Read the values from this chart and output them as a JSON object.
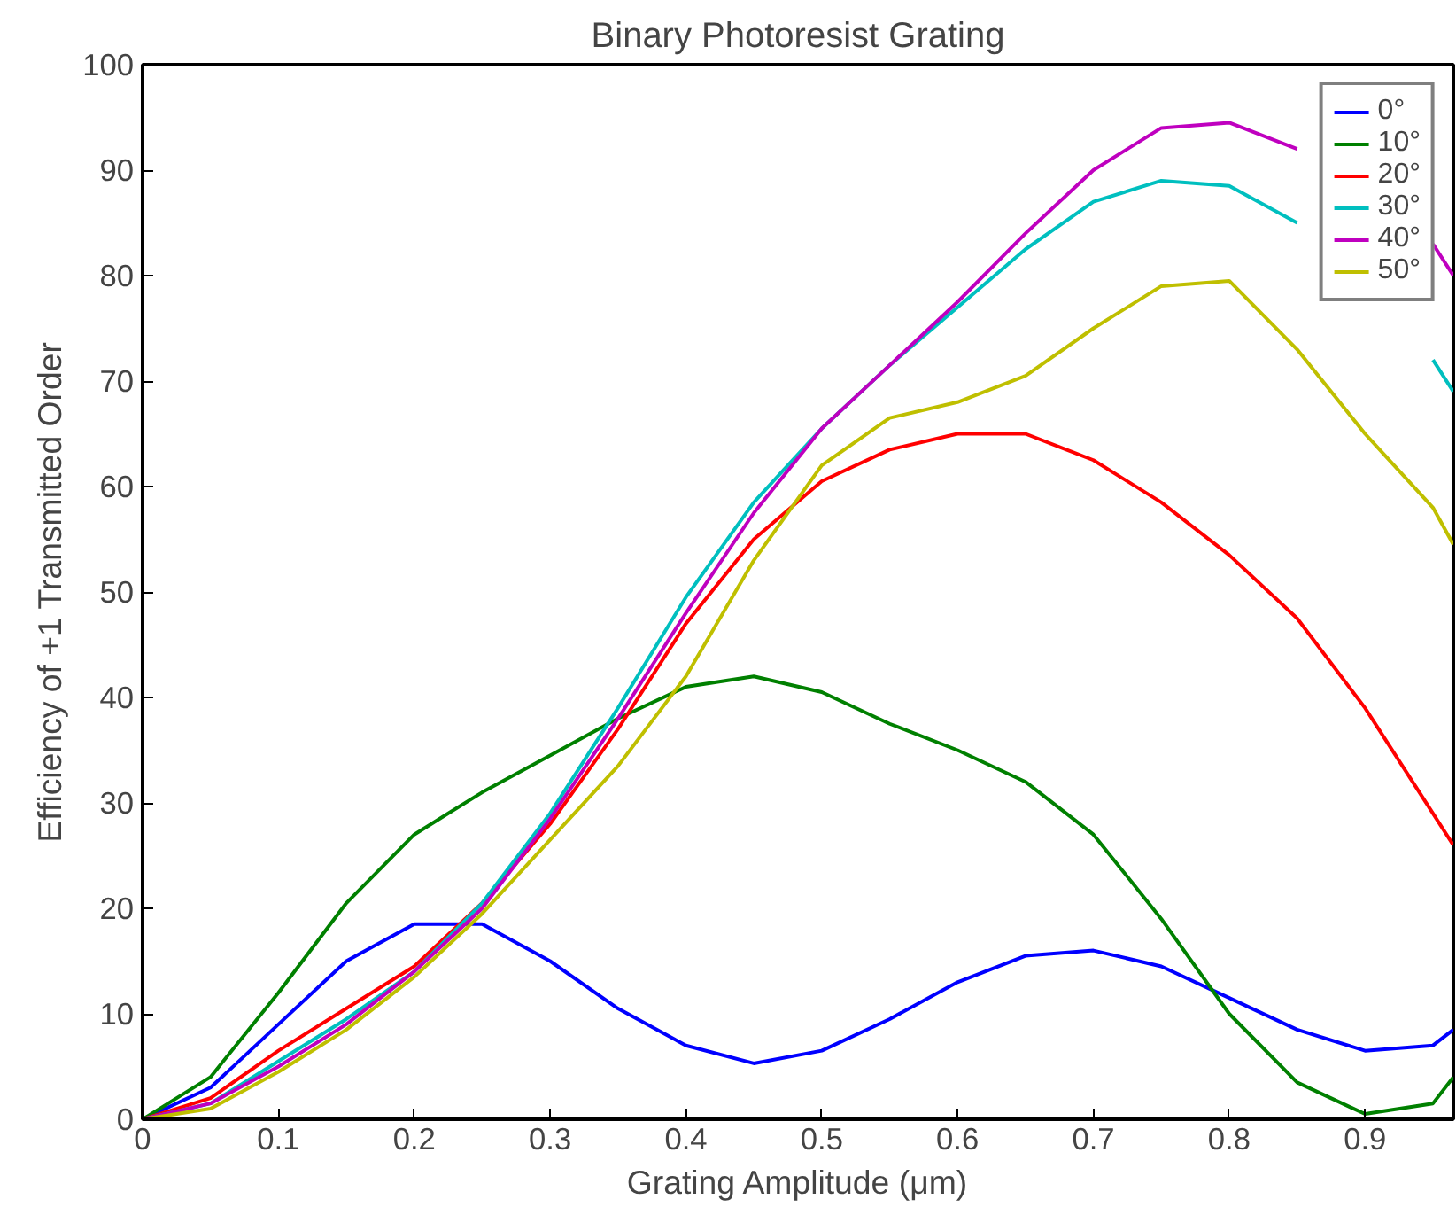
{
  "chart_data": {
    "type": "line",
    "title": "Binary Photoresist Grating",
    "xlabel": "Grating Amplitude (μm)",
    "ylabel": "Efficiency of +1 Transmitted Order",
    "x": [
      0,
      0.05,
      0.1,
      0.15,
      0.2,
      0.25,
      0.3,
      0.35,
      0.4,
      0.45,
      0.5,
      0.55,
      0.6,
      0.65,
      0.7,
      0.75,
      0.8,
      0.85,
      0.9,
      0.95,
      0.965
    ],
    "series": [
      {
        "name": "0°",
        "color": "#0000ff",
        "values": [
          0,
          3,
          9,
          15,
          18.5,
          18.5,
          15,
          10.5,
          7,
          5.3,
          6.5,
          9.5,
          13,
          15.5,
          16,
          14.5,
          11.5,
          8.5,
          6.5,
          7,
          8.5
        ]
      },
      {
        "name": "10°",
        "color": "#008000",
        "values": [
          0,
          4,
          12,
          20.5,
          27,
          31,
          34.5,
          38,
          41,
          42,
          40.5,
          37.5,
          35,
          32,
          27,
          19,
          10,
          3.5,
          0.5,
          1.5,
          4
        ]
      },
      {
        "name": "20°",
        "color": "#ff0000",
        "values": [
          0,
          2,
          6.5,
          10.5,
          14.5,
          20.5,
          28,
          37,
          47,
          55,
          60.5,
          63.5,
          65,
          65,
          62.5,
          58.5,
          53.5,
          47.5,
          39,
          29,
          26
        ]
      },
      {
        "name": "30°",
        "color": "#00bfbf",
        "values": [
          0,
          1.5,
          5.5,
          9.5,
          14,
          20.5,
          29,
          39,
          49.5,
          58.5,
          65.5,
          71.5,
          77,
          82.5,
          87,
          89,
          88.5,
          85,
          null,
          72,
          69
        ]
      },
      {
        "name": "40°",
        "color": "#bf00bf",
        "values": [
          0,
          1.5,
          5,
          9,
          14,
          20,
          28.5,
          38,
          48,
          57.5,
          65.5,
          71.5,
          77.5,
          84,
          90,
          94,
          94.5,
          92,
          null,
          83,
          80
        ]
      },
      {
        "name": "50°",
        "color": "#bfbf00",
        "values": [
          0,
          1,
          4.5,
          8.5,
          13.5,
          19.5,
          26.5,
          33.5,
          42,
          53,
          62,
          66.5,
          68,
          70.5,
          75,
          79,
          79.5,
          73,
          65,
          58,
          54.5
        ]
      }
    ],
    "xlim": [
      0,
      0.965
    ],
    "ylim": [
      0,
      100
    ],
    "xticks": [
      0,
      0.1,
      0.2,
      0.3,
      0.4,
      0.5,
      0.6,
      0.7,
      0.8,
      0.9
    ],
    "yticks": [
      0,
      10,
      20,
      30,
      40,
      50,
      60,
      70,
      80,
      90,
      100
    ],
    "grid": false,
    "legend": "top right"
  }
}
